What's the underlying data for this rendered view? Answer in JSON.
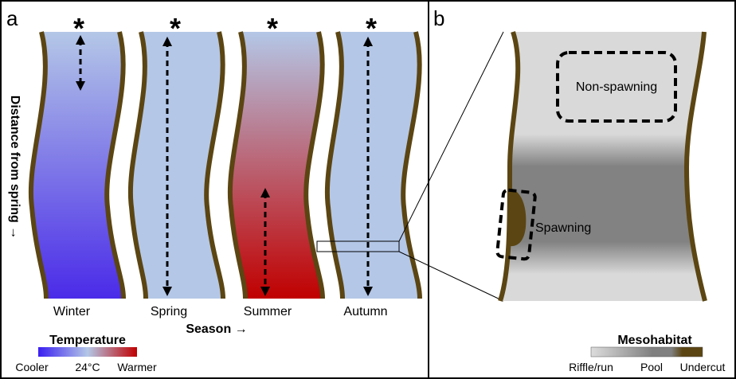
{
  "panel_a": {
    "label": "a",
    "streams": [
      {
        "season": "Winter",
        "marker": "*"
      },
      {
        "season": "Spring",
        "marker": "*"
      },
      {
        "season": "Summer",
        "marker": "*"
      },
      {
        "season": "Autumn",
        "marker": "*"
      }
    ],
    "x_axis_label": "Season →",
    "y_axis_label": "Distance from spring →",
    "legend": {
      "title": "Temperature",
      "labels": [
        "Cooler",
        "24°C",
        "Warmer"
      ]
    }
  },
  "panel_b": {
    "label": "b",
    "zones": [
      "Non-spawning",
      "Spawning"
    ],
    "legend": {
      "title": "Mesohabitat",
      "labels": [
        "Riffle/run",
        "Pool",
        "Undercut"
      ]
    }
  }
}
